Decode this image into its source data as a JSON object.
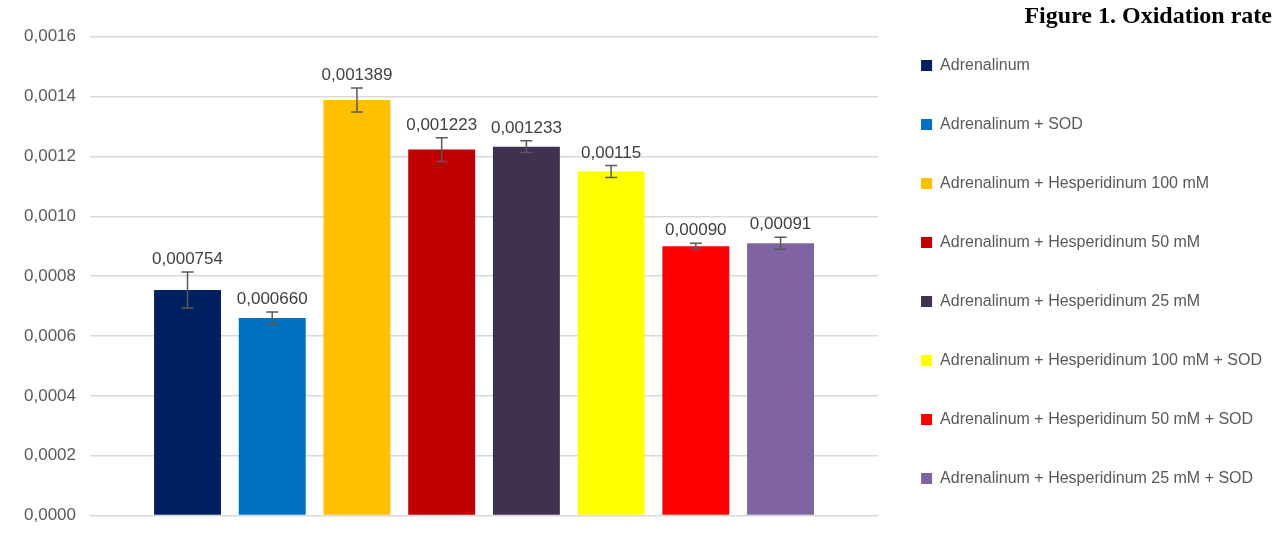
{
  "chart_data": {
    "type": "bar",
    "title": "Figure 1. Oxidation rate",
    "categories": [
      null
    ],
    "series": [
      {
        "name": "Adrenalinum",
        "color": "#002060",
        "values": [
          0.000754
        ],
        "errors": [
          6e-05
        ],
        "value_labels": [
          "0,000754"
        ]
      },
      {
        "name": "Adrenalinum + SOD",
        "color": "#0070c0",
        "values": [
          0.00066
        ],
        "errors": [
          2e-05
        ],
        "value_labels": [
          "0,000660"
        ]
      },
      {
        "name": "Adrenalinum + Hesperidinum 100 mM",
        "color": "#ffc000",
        "values": [
          0.001389
        ],
        "errors": [
          4e-05
        ],
        "value_labels": [
          "0,001389"
        ]
      },
      {
        "name": "Adrenalinum + Hesperidinum 50 mM",
        "color": "#c00000",
        "values": [
          0.001223
        ],
        "errors": [
          4e-05
        ],
        "value_labels": [
          "0,001223"
        ]
      },
      {
        "name": "Adrenalinum + Hesperidinum 25 mM",
        "color": "#403151",
        "values": [
          0.001233
        ],
        "errors": [
          2e-05
        ],
        "value_labels": [
          "0,001233"
        ]
      },
      {
        "name": "Adrenalinum + Hesperidinum 100 mM + SOD",
        "color": "#ffff00",
        "values": [
          0.00115
        ],
        "errors": [
          2e-05
        ],
        "value_labels": [
          "0,00115"
        ]
      },
      {
        "name": "Adrenalinum + Hesperidinum 50 mM + SOD",
        "color": "#ff0000",
        "values": [
          0.0009
        ],
        "errors": [
          1e-05
        ],
        "value_labels": [
          "0,00090"
        ]
      },
      {
        "name": "Adrenalinum + Hesperidinum 25 mM + SOD",
        "color": "#8064a2",
        "values": [
          0.00091
        ],
        "errors": [
          2e-05
        ],
        "value_labels": [
          "0,00091"
        ]
      }
    ],
    "ylim": [
      0,
      0.0016
    ],
    "yticks": [
      {
        "value": 0,
        "label": "0,0000"
      },
      {
        "value": 0.0002,
        "label": "0,0002"
      },
      {
        "value": 0.0004,
        "label": "0,0004"
      },
      {
        "value": 0.0006,
        "label": "0,0006"
      },
      {
        "value": 0.0008,
        "label": "0,0008"
      },
      {
        "value": 0.001,
        "label": "0,0010"
      },
      {
        "value": 0.0012,
        "label": "0,0012"
      },
      {
        "value": 0.0014,
        "label": "0,0014"
      },
      {
        "value": 0.0016,
        "label": "0,0016"
      }
    ],
    "grid": "y",
    "legend": "right"
  }
}
